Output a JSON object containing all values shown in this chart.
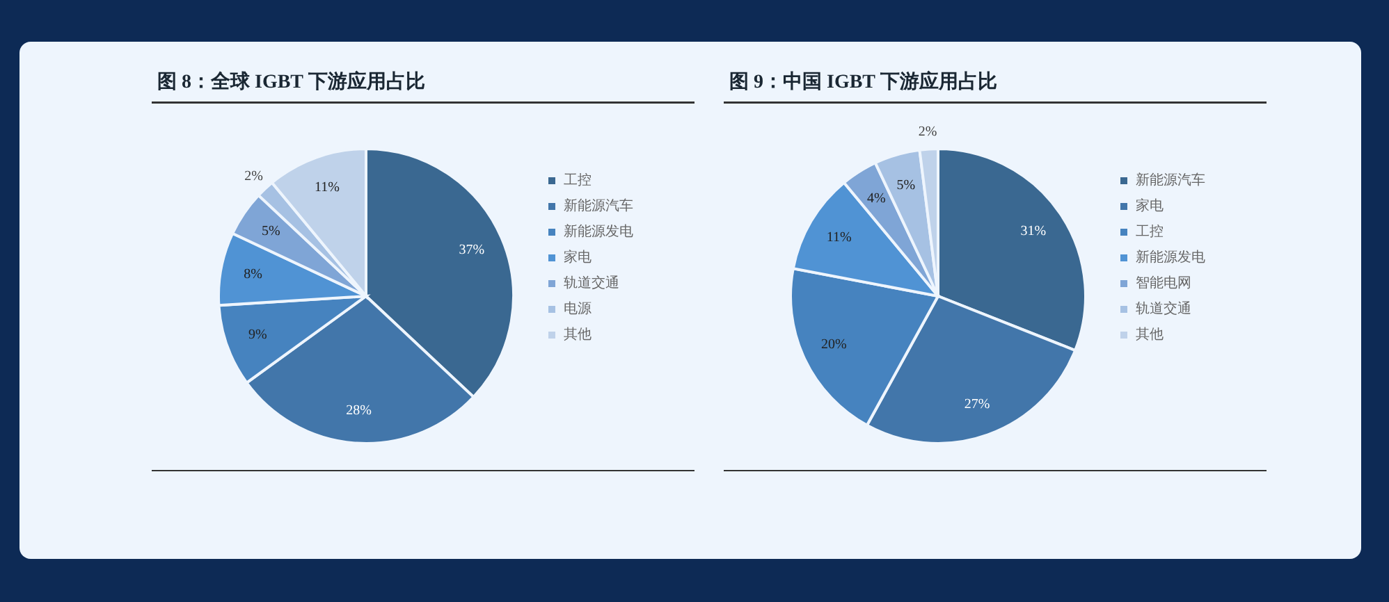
{
  "chart_data": [
    {
      "type": "pie",
      "title": "图 8：全球 IGBT 下游应用占比",
      "categories": [
        "工控",
        "新能源汽车",
        "新能源发电",
        "家电",
        "轨道交通",
        "电源",
        "其他"
      ],
      "values": [
        37,
        28,
        9,
        8,
        5,
        2,
        11
      ],
      "value_labels": [
        "37%",
        "28%",
        "9%",
        "8%",
        "5%",
        "2%",
        "11%"
      ],
      "colors": [
        "#3a6891",
        "#4276aa",
        "#4683bf",
        "#5093d4",
        "#7fa5d6",
        "#a6c1e3",
        "#bfd2ea"
      ],
      "legend": "right"
    },
    {
      "type": "pie",
      "title": "图 9：中国 IGBT 下游应用占比",
      "categories": [
        "新能源汽车",
        "家电",
        "工控",
        "新能源发电",
        "智能电网",
        "轨道交通",
        "其他"
      ],
      "values": [
        31,
        27,
        20,
        11,
        4,
        5,
        2
      ],
      "value_labels": [
        "31%",
        "27%",
        "20%",
        "11%",
        "4%",
        "5%",
        "2%"
      ],
      "colors": [
        "#3a6891",
        "#4276aa",
        "#4683bf",
        "#5093d4",
        "#7fa5d6",
        "#a6c1e3",
        "#bfd2ea"
      ],
      "legend": "right"
    }
  ]
}
